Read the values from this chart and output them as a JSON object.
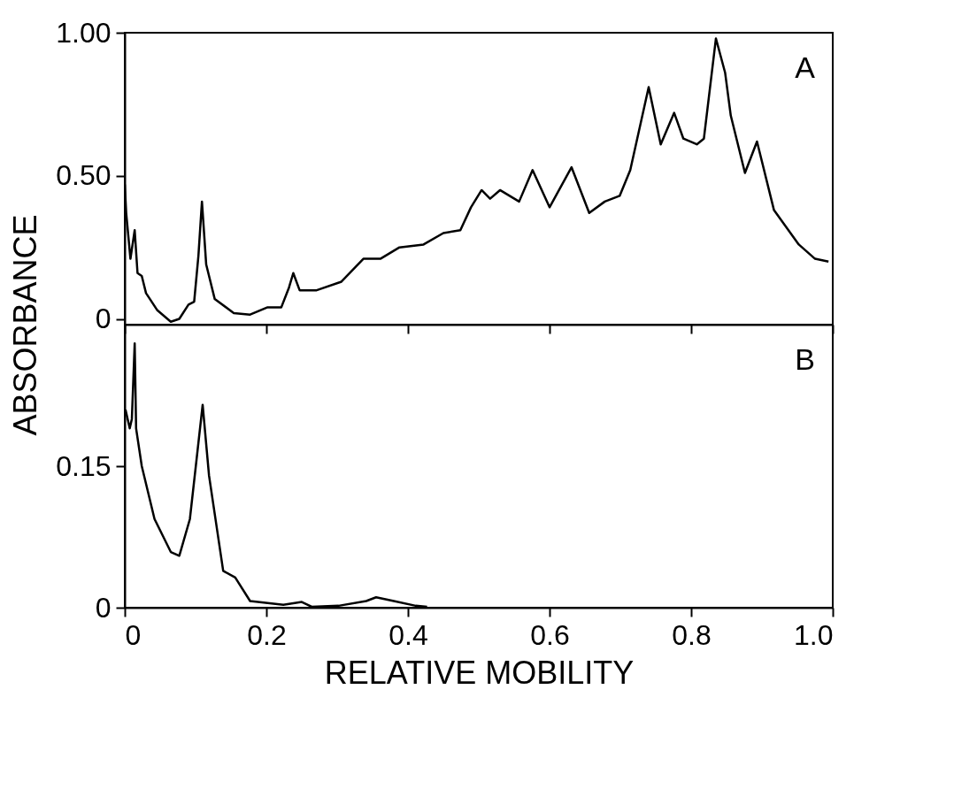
{
  "chart_data": [
    {
      "type": "line",
      "ylabel": "ABSORBANCE",
      "annotations": [
        "A"
      ],
      "tick_labels": "y",
      "grid": false,
      "marker": "none",
      "line_style": "solid",
      "xlim": [
        0,
        1.0
      ],
      "xticks": [
        0,
        0.2,
        0.4,
        0.6,
        0.8,
        1.0
      ],
      "ylim": [
        -0.02,
        1.0
      ],
      "yticks": [
        0,
        {
          "value": 0.5,
          "label": "0.50"
        },
        {
          "value": 1.0,
          "label": "1.00"
        }
      ],
      "series": [
        {
          "color": "#000000",
          "x": [
            0,
            0.002,
            0.008,
            0.014,
            0.018,
            0.024,
            0.03,
            0.046,
            0.065,
            0.077,
            0.09,
            0.098,
            0.104,
            0.109,
            0.115,
            0.127,
            0.154,
            0.177,
            0.201,
            0.221,
            0.232,
            0.238,
            0.247,
            0.271,
            0.306,
            0.337,
            0.361,
            0.388,
            0.422,
            0.45,
            0.474,
            0.489,
            0.504,
            0.516,
            0.53,
            0.557,
            0.576,
            0.6,
            0.631,
            0.656,
            0.678,
            0.699,
            0.714,
            0.74,
            0.757,
            0.776,
            0.789,
            0.808,
            0.818,
            0.835,
            0.848,
            0.856,
            0.876,
            0.893,
            0.917,
            0.952,
            0.975,
            0.994
          ],
          "values": [
            0.47,
            0.37,
            0.21,
            0.31,
            0.16,
            0.15,
            0.09,
            0.03,
            -0.01,
            0.0,
            0.05,
            0.06,
            0.22,
            0.41,
            0.19,
            0.07,
            0.02,
            0.015,
            0.04,
            0.04,
            0.11,
            0.16,
            0.1,
            0.1,
            0.13,
            0.21,
            0.21,
            0.25,
            0.26,
            0.3,
            0.31,
            0.39,
            0.45,
            0.42,
            0.45,
            0.41,
            0.52,
            0.39,
            0.53,
            0.37,
            0.41,
            0.43,
            0.52,
            0.81,
            0.61,
            0.72,
            0.63,
            0.61,
            0.63,
            0.98,
            0.86,
            0.71,
            0.51,
            0.62,
            0.38,
            0.26,
            0.21,
            0.2
          ]
        }
      ]
    },
    {
      "type": "line",
      "xlabel": "RELATIVE MOBILITY",
      "annotations": [
        "B"
      ],
      "grid": false,
      "marker": "none",
      "line_style": "solid",
      "xlim": [
        0,
        1.0
      ],
      "xticks": [
        0,
        0.2,
        0.4,
        0.6,
        0.8,
        {
          "value": 1.0,
          "label": "1.0"
        }
      ],
      "ylim": [
        0,
        0.3
      ],
      "yticks": [
        0,
        0.15
      ],
      "series": [
        {
          "color": "#000000",
          "x": [
            0.001,
            0.007,
            0.01,
            0.014,
            0.016,
            0.024,
            0.042,
            0.065,
            0.077,
            0.092,
            0.11,
            0.119,
            0.139,
            0.156,
            0.177,
            0.224,
            0.25,
            0.264,
            0.302,
            0.341,
            0.355,
            0.38,
            0.411,
            0.427
          ],
          "values": [
            0.21,
            0.19,
            0.2,
            0.28,
            0.19,
            0.15,
            0.094,
            0.059,
            0.055,
            0.094,
            0.215,
            0.14,
            0.039,
            0.032,
            0.007,
            0.003,
            0.006,
            0.001,
            0.002,
            0.007,
            0.011,
            0.007,
            0.002,
            0.001
          ]
        }
      ]
    }
  ]
}
